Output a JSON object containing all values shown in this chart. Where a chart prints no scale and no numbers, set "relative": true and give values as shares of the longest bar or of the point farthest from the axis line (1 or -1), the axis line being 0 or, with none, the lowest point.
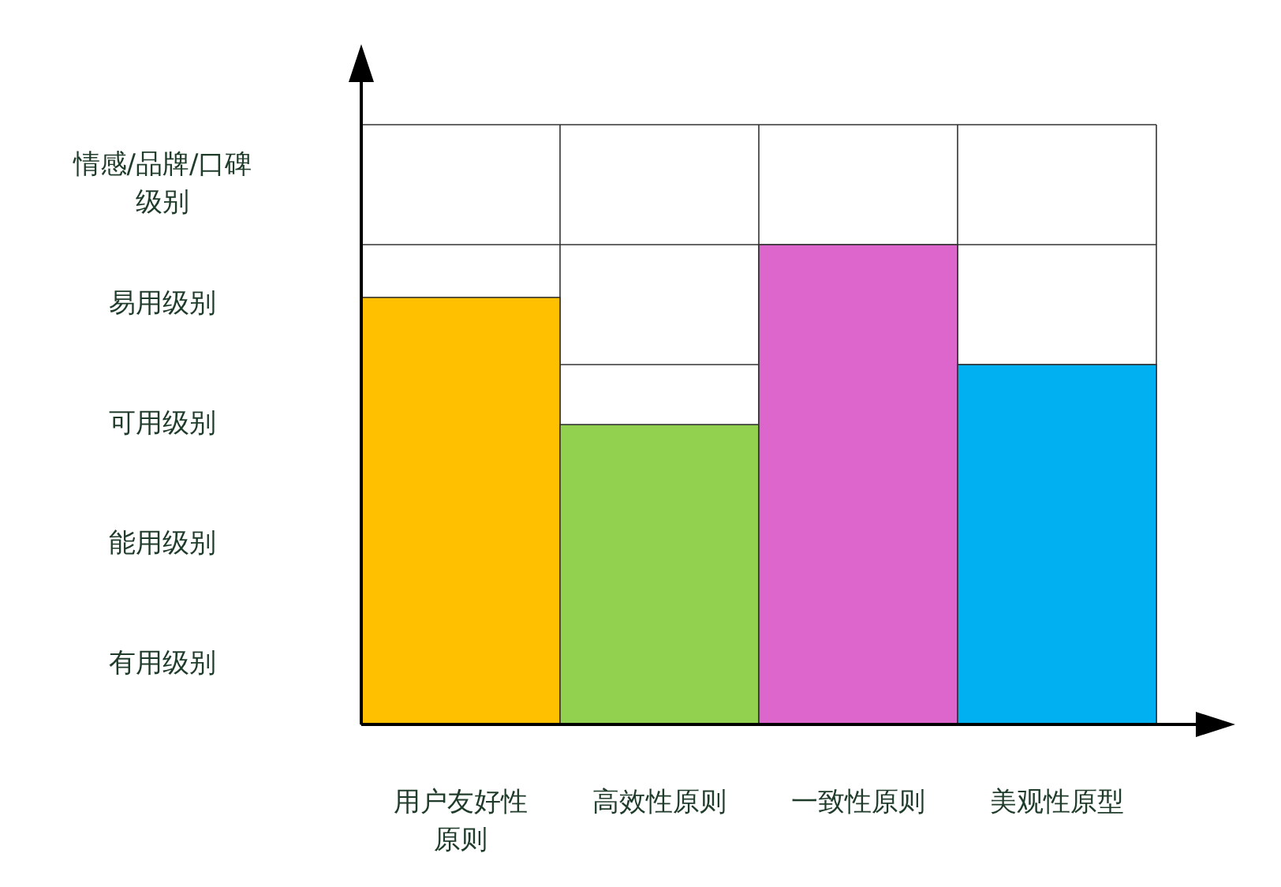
{
  "chart_data": {
    "type": "bar",
    "relative": true,
    "categories": [
      "用户友好性原则",
      "高效性原则",
      "一致性原则",
      "美观性原型"
    ],
    "values": [
      0.89,
      0.625,
      1,
      0.75
    ],
    "colors": [
      "#ffc000",
      "#92d050",
      "#dd66cc",
      "#00b0f0"
    ],
    "annotations": [
      "有用级别",
      "能用级别",
      "可用级别",
      "易用级别",
      "情感/品牌/口碑级别"
    ],
    "grid": true
  }
}
